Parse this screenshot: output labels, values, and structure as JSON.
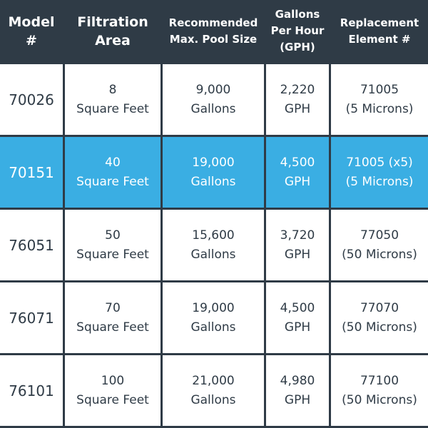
{
  "headers": [
    {
      "line1": "Model",
      "line2": "#"
    },
    {
      "line1": "Filtration",
      "line2": "Area"
    },
    {
      "line1": "Recommended",
      "line2": "Max. Pool Size"
    },
    {
      "line1": "Gallons",
      "line2": "Per Hour",
      "line3": "(GPH)"
    },
    {
      "line1": "Replacement",
      "line2": "Element #"
    }
  ],
  "rows": [
    {
      "model": "70026",
      "area": "8",
      "area_unit": "Square Feet",
      "pool": "9,000",
      "pool_unit": "Gallons",
      "gph": "2,220",
      "gph_unit": "GPH",
      "element": "71005",
      "element_note": "(5 Microns)",
      "highlighted": false
    },
    {
      "model": "70151",
      "area": "40",
      "area_unit": "Square Feet",
      "pool": "19,000",
      "pool_unit": "Gallons",
      "gph": "4,500",
      "gph_unit": "GPH",
      "element": "71005 (x5)",
      "element_note": "(5 Microns)",
      "highlighted": true
    },
    {
      "model": "76051",
      "area": "50",
      "area_unit": "Square Feet",
      "pool": "15,600",
      "pool_unit": "Gallons",
      "gph": "3,720",
      "gph_unit": "GPH",
      "element": "77050",
      "element_note": "(50 Microns)",
      "highlighted": false
    },
    {
      "model": "76071",
      "area": "70",
      "area_unit": "Square Feet",
      "pool": "19,000",
      "pool_unit": "Gallons",
      "gph": "4,500",
      "gph_unit": "GPH",
      "element": "77070",
      "element_note": "(50 Microns)",
      "highlighted": false
    },
    {
      "model": "76101",
      "area": "100",
      "area_unit": "Square Feet",
      "pool": "21,000",
      "pool_unit": "Gallons",
      "gph": "4,980",
      "gph_unit": "GPH",
      "element": "77100",
      "element_note": "(50 Microns)",
      "highlighted": false
    }
  ],
  "colors": {
    "header_bg": "#2f3b46",
    "highlight_bg": "#3aaee3",
    "cell_bg": "#ffffff",
    "text_dark": "#2f3b46"
  }
}
